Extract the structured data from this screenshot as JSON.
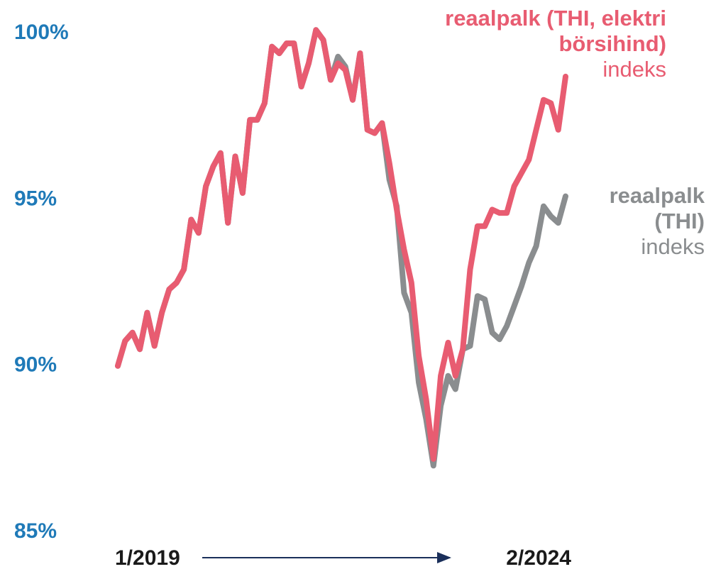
{
  "chart_data": {
    "type": "line",
    "categories": [
      "1/2019",
      null,
      null,
      null,
      null,
      null,
      null,
      null,
      null,
      null,
      null,
      null,
      null,
      null,
      null,
      null,
      null,
      null,
      null,
      null,
      null,
      null,
      null,
      null,
      null,
      null,
      null,
      null,
      null,
      null,
      null,
      null,
      null,
      null,
      null,
      null,
      null,
      null,
      null,
      null,
      null,
      null,
      null,
      null,
      null,
      null,
      null,
      null,
      null,
      null,
      null,
      null,
      null,
      null,
      null,
      null,
      null,
      null,
      null,
      null,
      null,
      "2/2024"
    ],
    "ylim": [
      85,
      100
    ],
    "yticks": [
      {
        "value": 85,
        "label": "85%"
      },
      {
        "value": 90,
        "label": "90%"
      },
      {
        "value": 95,
        "label": "95%"
      },
      {
        "value": 100,
        "label": "100%"
      }
    ],
    "tick_color": "#1f7ab8",
    "series": [
      {
        "name": "reaalpalk (THI)",
        "unit_label": "indeks",
        "color": "#8a8d8f",
        "values": [
          90.0,
          90.75,
          91.0,
          90.5,
          91.6,
          90.6,
          91.6,
          92.3,
          92.5,
          92.9,
          94.4,
          94.0,
          95.4,
          96.0,
          96.4,
          94.3,
          96.3,
          95.2,
          97.4,
          97.4,
          97.9,
          99.6,
          99.4,
          99.7,
          99.7,
          98.4,
          99.1,
          100.1,
          99.8,
          98.6,
          99.3,
          99.0,
          98.0,
          99.4,
          97.1,
          97.0,
          97.3,
          95.6,
          94.8,
          92.2,
          91.6,
          89.5,
          88.4,
          87.0,
          88.8,
          89.7,
          89.3,
          90.5,
          90.6,
          92.1,
          92.0,
          91.0,
          90.8,
          91.2,
          91.8,
          92.4,
          93.1,
          93.6,
          94.8,
          94.5,
          94.3,
          95.1
        ]
      },
      {
        "name": "reaalpalk (THI, elektri börsihind)",
        "unit_label": "indeks",
        "color": "#e85c71",
        "values": [
          90.0,
          90.75,
          91.0,
          90.5,
          91.6,
          90.6,
          91.6,
          92.3,
          92.5,
          92.9,
          94.4,
          94.0,
          95.4,
          96.0,
          96.4,
          94.3,
          96.3,
          95.2,
          97.4,
          97.4,
          97.9,
          99.6,
          99.4,
          99.7,
          99.7,
          98.4,
          99.1,
          100.1,
          99.8,
          98.6,
          99.1,
          98.9,
          98.0,
          99.4,
          97.1,
          97.0,
          97.3,
          96.1,
          94.7,
          93.5,
          92.5,
          90.3,
          89.0,
          87.2,
          89.7,
          90.7,
          89.7,
          90.5,
          92.9,
          94.2,
          94.2,
          94.7,
          94.6,
          94.6,
          95.4,
          95.8,
          96.2,
          97.1,
          98.0,
          97.9,
          97.1,
          98.7
        ]
      }
    ]
  }
}
